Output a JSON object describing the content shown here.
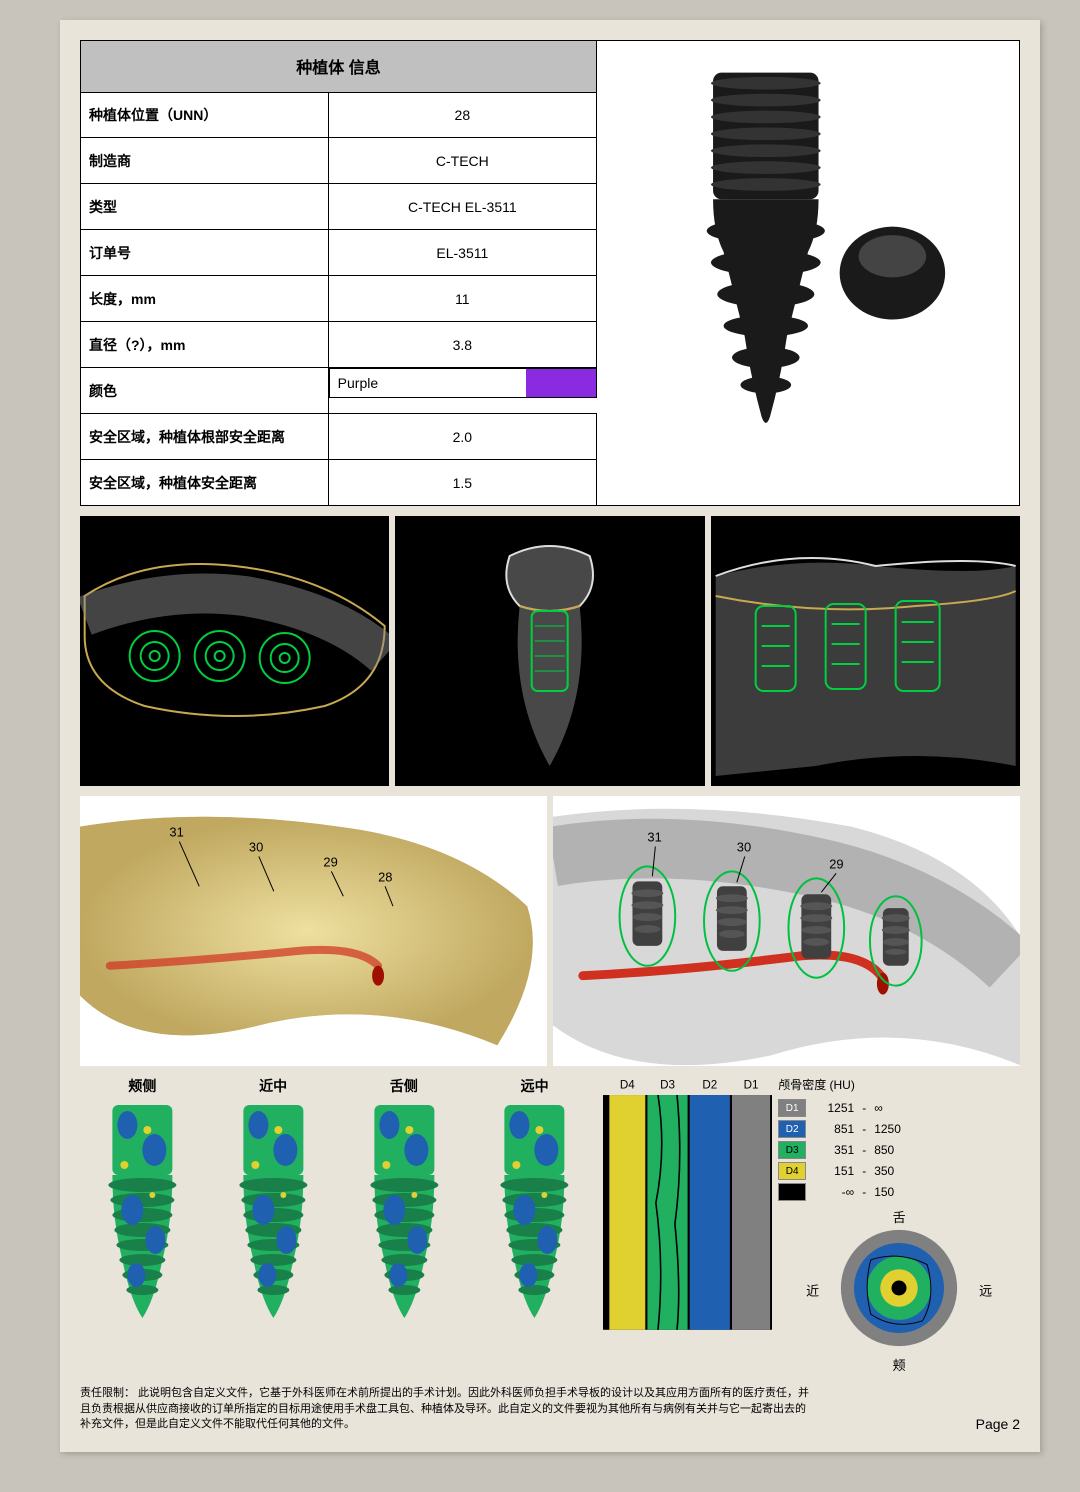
{
  "table": {
    "title": "种植体   信息",
    "rows": [
      {
        "label": "种植体位置（UNN）",
        "value": "28"
      },
      {
        "label": "制造商",
        "value": "C-TECH"
      },
      {
        "label": "类型",
        "value": "C-TECH EL-3511"
      },
      {
        "label": "订单号",
        "value": "EL-3511"
      },
      {
        "label": "长度，mm",
        "value": "11"
      },
      {
        "label": "直径（?），mm",
        "value": "3.8"
      }
    ],
    "color_row": {
      "label": "颜色",
      "value": "Purple",
      "swatch": "#8a2be2"
    },
    "safety_rows": [
      {
        "label": "安全区域，种植体根部安全距离",
        "value": "2.0"
      },
      {
        "label": "安全区域，种植体安全距离",
        "value": "1.5"
      }
    ]
  },
  "implant_thumb": {
    "body_color": "#1a1a1a",
    "abutment_color": "#1a1a1a"
  },
  "ct": {
    "bg": "#000000",
    "bone_outline": "#c8a850",
    "implant_outline": "#00d040",
    "bone_fill": "#888888"
  },
  "render3d": {
    "left_bg": "#d8c880",
    "right_bg": "#e0e0e0",
    "nerve_color": "#d03020",
    "implant_color": "#404040",
    "labels": [
      "31",
      "30",
      "29",
      "28"
    ],
    "outline_color": "#00c040"
  },
  "views": {
    "labels": [
      "颊侧",
      "近中",
      "舌侧",
      "远中"
    ],
    "body_base": "#20b060",
    "body_patch": "#2060b0",
    "body_accent": "#e0d030"
  },
  "density_cols": {
    "bg": "#000000",
    "labels": [
      "D4",
      "D3",
      "D2",
      "D1"
    ],
    "colors": [
      "#e0d030",
      "#20b060",
      "#2060b0",
      "#808080"
    ]
  },
  "legend": {
    "title": "颅骨密度 (HU)",
    "rows": [
      {
        "code": "D1",
        "swatch": "#808080",
        "from": "1251",
        "sep": "-",
        "to": "∞"
      },
      {
        "code": "D2",
        "swatch": "#2060b0",
        "from": "851",
        "sep": "-",
        "to": "1250"
      },
      {
        "code": "D3",
        "swatch": "#20b060",
        "from": "351",
        "sep": "-",
        "to": "850"
      },
      {
        "code": "D4",
        "swatch": "#e0d030",
        "from": "151",
        "sep": "-",
        "to": "350"
      },
      {
        "code": "",
        "swatch": "#000000",
        "from": "-∞",
        "sep": "-",
        "to": "150"
      }
    ]
  },
  "ring": {
    "labels": {
      "top": "舌",
      "right": "远",
      "bottom": "颊",
      "left": "近"
    },
    "rings": [
      "#808080",
      "#2060b0",
      "#20b060",
      "#e0d030",
      "#000000"
    ]
  },
  "footer": {
    "disclaimer": "责任限制：\n此说明包含自定义文件，它基于外科医师在术前所提出的手术计划。因此外科医师负担手术导板的设计以及其应用方面所有的医疗责任，并且负责根据从供应商接收的订单所指定的目标用途使用手术盘工具包、种植体及导环。此自定义的文件要视为其他所有与病例有关并与它一起寄出去的补充文件，但是此自定义文件不能取代任何其他的文件。",
    "page": "Page 2"
  }
}
